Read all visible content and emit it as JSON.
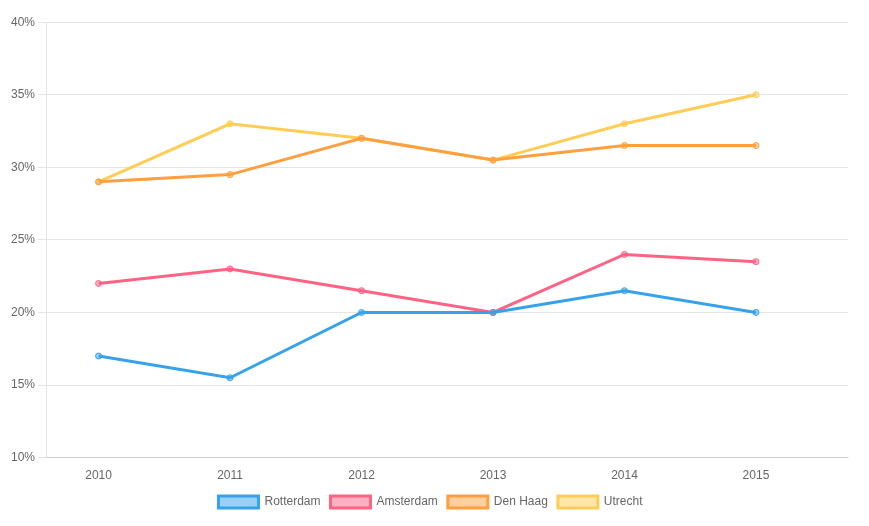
{
  "chart_data": {
    "type": "line",
    "x": [
      2010,
      2011,
      2012,
      2013,
      2014,
      2015
    ],
    "series": [
      {
        "name": "Rotterdam",
        "values": [
          17.0,
          15.5,
          20.0,
          20.0,
          21.5,
          20.0
        ]
      },
      {
        "name": "Amsterdam",
        "values": [
          22.0,
          23.0,
          21.5,
          20.0,
          24.0,
          23.5
        ]
      },
      {
        "name": "Den Haag",
        "values": [
          29.0,
          29.5,
          32.0,
          30.5,
          31.5,
          31.5
        ]
      },
      {
        "name": "Utrecht",
        "values": [
          29.0,
          33.0,
          32.0,
          30.5,
          33.0,
          35.0
        ]
      }
    ],
    "xlim": [
      2009.6,
      2015.7
    ],
    "xticks": [
      2010,
      2011,
      2012,
      2013,
      2014,
      2015
    ],
    "ylim": [
      10,
      40
    ],
    "yticks": [
      {
        "value": 10,
        "label": "10%"
      },
      {
        "value": 15,
        "label": "15%"
      },
      {
        "value": 20,
        "label": "20%"
      },
      {
        "value": 25,
        "label": "25%"
      },
      {
        "value": 30,
        "label": "30%"
      },
      {
        "value": 35,
        "label": "35%"
      },
      {
        "value": 40,
        "label": "40%"
      }
    ],
    "grid": true,
    "legend": "bottom"
  }
}
